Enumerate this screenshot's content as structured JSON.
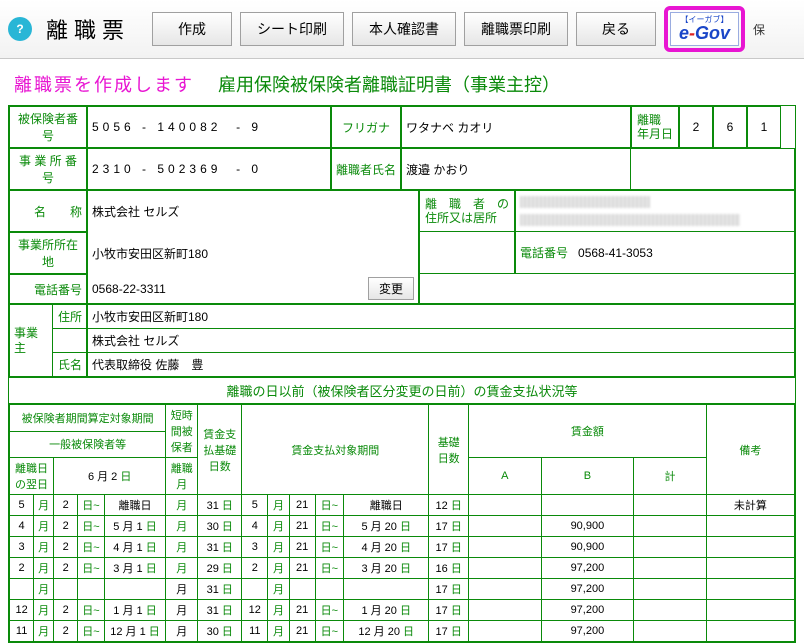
{
  "topbar": {
    "title": "離職票",
    "help": "?",
    "buttons": {
      "create": "作成",
      "sheet_print": "シート印刷",
      "honnin": "本人確認書",
      "rishoku_print": "離職票印刷",
      "back": "戻る"
    },
    "egov_sub": "【イーガブ】",
    "trail": "保"
  },
  "headline": {
    "pink": "離職票を作成します",
    "green": "雇用保険被保険者離職証明書（事業主控）"
  },
  "top_fields": {
    "insured_no_lbl": "被保険者番号",
    "insured_no_1": "5056",
    "insured_no_2": "140082",
    "insured_no_3": "9",
    "office_no_lbl": "事 業 所 番 号",
    "office_no_1": "2310",
    "office_no_2": "502369",
    "office_no_3": "0",
    "furigana_lbl": "フリガナ",
    "furigana": "ワタナベ カオリ",
    "name_lbl": "離職者氏名",
    "name": "渡邉 かおり",
    "rishoku_date_lbl": "離職\n年月日",
    "y": "2",
    "m": "6",
    "d": "1"
  },
  "company": {
    "name_lbl": "名　　称",
    "name": "株式会社 セルズ",
    "addr_lbl": "事業所所在地",
    "addr": "小牧市安田区新町180",
    "tel_lbl": "電話番号",
    "tel": "0568-22-3311",
    "change_btn": "変更",
    "rishokusha_lbl": "離　職　者　の\n住所又は居所",
    "r_tel_lbl": "電話番号",
    "r_tel": "0568-41-3053"
  },
  "owner": {
    "side_lbl": "事業主",
    "addr_lbl": "住所",
    "addr": "小牧市安田区新町180",
    "co": "株式会社 セルズ",
    "name_lbl": "氏名",
    "name": "代表取締役 佐藤　豊"
  },
  "section_title": "離職の日以前（被保険者区分変更の日前）の賃金支払状況等",
  "wage_headers": {
    "h_period_top": "被保険者期間算定対象期間",
    "h_general": "一般被保険者等",
    "h_next_day": "離職日の翌日",
    "h_next_day_val": "6 月 2",
    "h_tanjikan": "短時\n間被\n保者",
    "h_chingin_shiharai": "賃金支\n払基礎\n日数",
    "h_rishoku_month": "離職月",
    "h_target": "賃金支払対象期間",
    "h_base_days": "基礎\n日数",
    "h_chingin": "賃金額",
    "h_A": "A",
    "h_B": "B",
    "h_kei": "計",
    "h_biko": "備考",
    "h_month": "月",
    "h_day": "日"
  },
  "wage_rows": [
    {
      "a_m": "5",
      "a_d": "2",
      "b_txt": "離職日",
      "c": "",
      "days": "31",
      "p_m": "5",
      "p_d": "21",
      "p_to": "離職日",
      "base": "12",
      "A": "",
      "B": "",
      "kei": "",
      "biko": "未計算"
    },
    {
      "a_m": "4",
      "a_d": "2",
      "b_txt": "5 月 1",
      "c": "",
      "days": "30",
      "p_m": "4",
      "p_d": "21",
      "p_to": "5 月 20",
      "base": "17",
      "A": "",
      "B": "90,900",
      "kei": "",
      "biko": ""
    },
    {
      "a_m": "3",
      "a_d": "2",
      "b_txt": "4 月 1",
      "c": "",
      "days": "31",
      "p_m": "3",
      "p_d": "21",
      "p_to": "4 月 20",
      "base": "17",
      "A": "",
      "B": "90,900",
      "kei": "",
      "biko": ""
    },
    {
      "a_m": "2",
      "a_d": "2",
      "b_txt": "3 月 1",
      "c": "",
      "days": "29",
      "p_m": "2",
      "p_d": "21",
      "p_to": "3 月 20",
      "base": "16",
      "A": "",
      "B": "97,200",
      "kei": "",
      "biko": ""
    },
    {
      "a_m": "",
      "a_d": "",
      "b_txt": "",
      "c": "月",
      "days": "31",
      "p_m": "",
      "p_d": "",
      "p_to": "",
      "base": "17",
      "A": "",
      "B": "97,200",
      "kei": "",
      "biko": ""
    },
    {
      "a_m": "12",
      "a_d": "2",
      "b_txt": "1 月 1",
      "c": "月",
      "days": "31",
      "p_m": "12",
      "p_d": "21",
      "p_to": "1 月 20",
      "base": "17",
      "A": "",
      "B": "97,200",
      "kei": "",
      "biko": ""
    },
    {
      "a_m": "11",
      "a_d": "2",
      "b_txt": "12 月 1",
      "c": "月",
      "days": "30",
      "p_m": "11",
      "p_d": "21",
      "p_to": "12 月 20",
      "base": "17",
      "A": "",
      "B": "97,200",
      "kei": "",
      "biko": ""
    }
  ],
  "style": {
    "green": "#0a8a0a",
    "pink": "#e815d2",
    "border": "#0a8a0a"
  }
}
